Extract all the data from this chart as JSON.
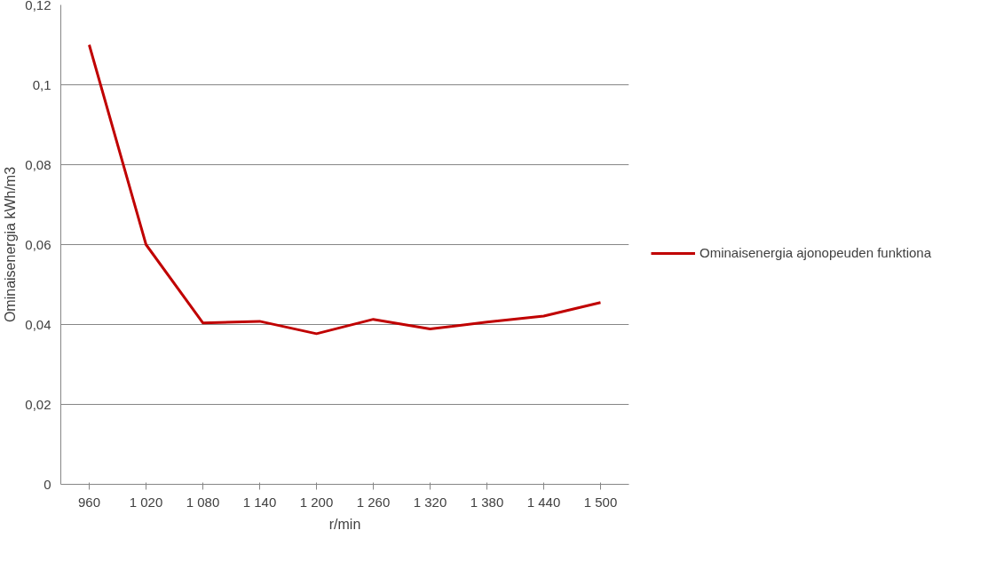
{
  "chart_data": {
    "type": "line",
    "xlabel": "r/min",
    "ylabel": "Ominaisenergia kWh/m3",
    "categories": [
      "960",
      "1 020",
      "1 080",
      "1 140",
      "1 200",
      "1 260",
      "1 320",
      "1 380",
      "1 440",
      "1 500"
    ],
    "series": [
      {
        "name": "Ominaisenergia ajonopeuden funktiona",
        "color": "#c00000",
        "values": [
          0.11,
          0.06,
          0.0404,
          0.0408,
          0.0377,
          0.0413,
          0.0389,
          0.0406,
          0.0421,
          0.0455
        ]
      }
    ],
    "ylim": [
      0,
      0.12
    ],
    "yticks": [
      0,
      {
        "value": 0.02,
        "label": "0,02"
      },
      {
        "value": 0.04,
        "label": "0,04"
      },
      {
        "value": 0.06,
        "label": "0,06"
      },
      {
        "value": 0.08,
        "label": "0,08"
      },
      {
        "value": 0.1,
        "label": "0,1"
      },
      {
        "value": 0.12,
        "label": "0,12"
      }
    ],
    "grid": "y",
    "legend": "right",
    "marker": "none",
    "line_style": "solid"
  }
}
